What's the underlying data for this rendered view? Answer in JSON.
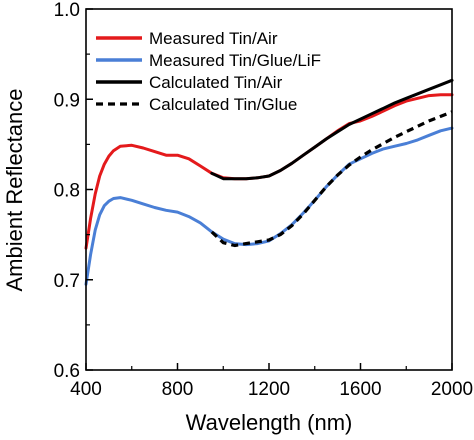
{
  "chart_data": {
    "type": "line",
    "title": "",
    "xlabel": "Wavelength (nm)",
    "ylabel": "Ambient Reflectance",
    "xlim": [
      400,
      2000
    ],
    "ylim": [
      0.6,
      1.0
    ],
    "xticks": [
      400,
      800,
      1200,
      1600,
      2000
    ],
    "yticks": [
      0.6,
      0.7,
      0.8,
      0.9,
      1.0
    ],
    "xtick_labels": [
      "400",
      "800",
      "1200",
      "1600",
      "2000"
    ],
    "ytick_labels": [
      "0.6",
      "0.7",
      "0.8",
      "0.9",
      "1.0"
    ],
    "grid": false,
    "legend_position": "top-left",
    "series": [
      {
        "name": "Measured Tin/Air",
        "color": "#e41a1c",
        "style": "solid",
        "x": [
          400,
          420,
          440,
          460,
          480,
          500,
          520,
          550,
          600,
          650,
          700,
          750,
          800,
          850,
          900,
          950,
          1000,
          1050,
          1100,
          1150,
          1200,
          1250,
          1300,
          1350,
          1400,
          1450,
          1500,
          1550,
          1600,
          1650,
          1700,
          1750,
          1800,
          1850,
          1900,
          1950,
          2000
        ],
        "values": [
          0.735,
          0.768,
          0.795,
          0.815,
          0.828,
          0.837,
          0.843,
          0.848,
          0.849,
          0.846,
          0.842,
          0.838,
          0.838,
          0.834,
          0.826,
          0.818,
          0.813,
          0.812,
          0.812,
          0.813,
          0.815,
          0.821,
          0.829,
          0.838,
          0.847,
          0.856,
          0.865,
          0.873,
          0.876,
          0.881,
          0.887,
          0.893,
          0.898,
          0.901,
          0.904,
          0.905,
          0.905
        ]
      },
      {
        "name": "Measured Tin/Glue/LiF",
        "color": "#4a7fd6",
        "style": "solid",
        "x": [
          400,
          420,
          440,
          460,
          480,
          500,
          520,
          550,
          600,
          650,
          700,
          750,
          800,
          850,
          900,
          950,
          1000,
          1050,
          1100,
          1150,
          1200,
          1250,
          1300,
          1350,
          1400,
          1450,
          1500,
          1550,
          1600,
          1650,
          1700,
          1750,
          1800,
          1850,
          1900,
          1950,
          2000
        ],
        "values": [
          0.695,
          0.728,
          0.755,
          0.772,
          0.782,
          0.787,
          0.79,
          0.791,
          0.788,
          0.784,
          0.78,
          0.777,
          0.775,
          0.77,
          0.763,
          0.753,
          0.745,
          0.74,
          0.739,
          0.74,
          0.743,
          0.751,
          0.761,
          0.774,
          0.788,
          0.803,
          0.816,
          0.828,
          0.834,
          0.84,
          0.845,
          0.848,
          0.851,
          0.855,
          0.86,
          0.865,
          0.868
        ]
      },
      {
        "name": "Calculated Tin/Air",
        "color": "#000000",
        "style": "solid",
        "x": [
          950,
          1000,
          1050,
          1100,
          1150,
          1200,
          1250,
          1300,
          1350,
          1400,
          1450,
          1500,
          1550,
          1600,
          1650,
          1700,
          1750,
          1800,
          1850,
          1900,
          1950,
          2000
        ],
        "values": [
          0.818,
          0.812,
          0.812,
          0.812,
          0.813,
          0.815,
          0.821,
          0.829,
          0.838,
          0.847,
          0.856,
          0.864,
          0.872,
          0.878,
          0.884,
          0.89,
          0.896,
          0.901,
          0.906,
          0.911,
          0.916,
          0.921
        ]
      },
      {
        "name": "Calculated Tin/Glue",
        "color": "#000000",
        "style": "dashed",
        "x": [
          950,
          1000,
          1050,
          1100,
          1150,
          1200,
          1250,
          1300,
          1350,
          1400,
          1450,
          1500,
          1550,
          1600,
          1650,
          1700,
          1750,
          1800,
          1850,
          1900,
          1950,
          2000
        ],
        "values": [
          0.753,
          0.741,
          0.738,
          0.74,
          0.742,
          0.744,
          0.75,
          0.76,
          0.773,
          0.788,
          0.803,
          0.816,
          0.827,
          0.836,
          0.844,
          0.851,
          0.858,
          0.864,
          0.87,
          0.876,
          0.881,
          0.886
        ]
      }
    ]
  }
}
